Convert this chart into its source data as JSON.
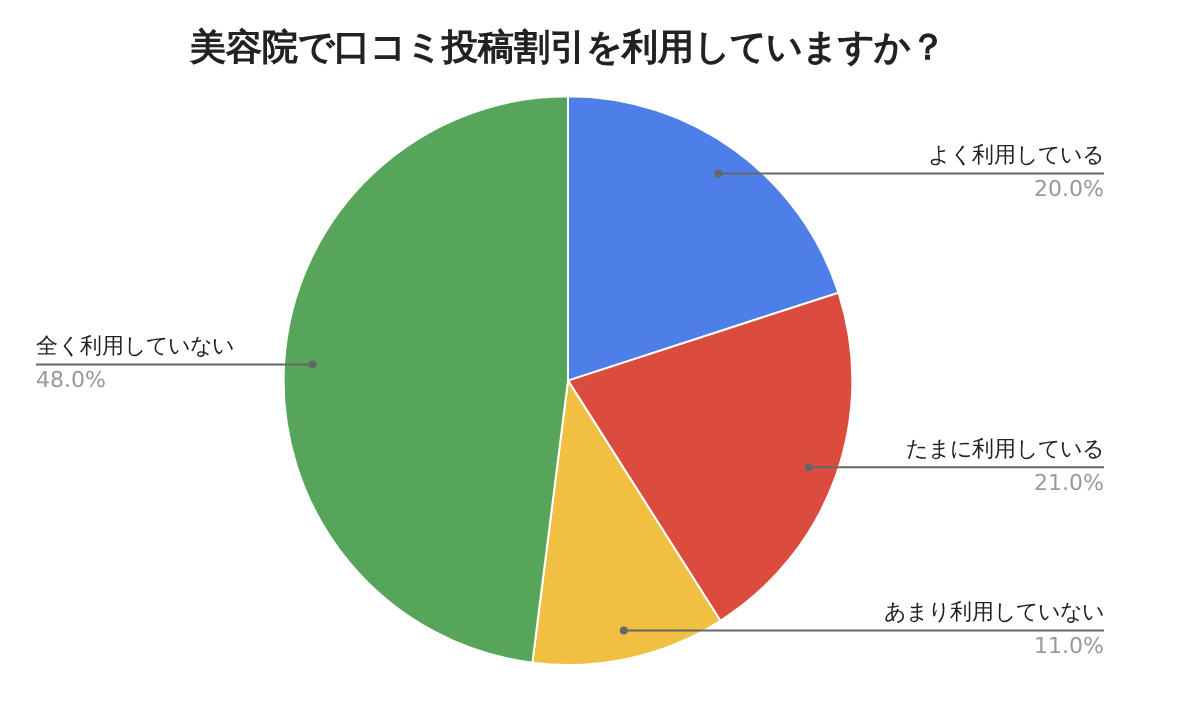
{
  "chart_data": {
    "type": "pie",
    "title": "美容院で口コミ投稿割引を利用していますか？",
    "categories": [
      "よく利用している",
      "たまに利用している",
      "あまり利用していない",
      "全く利用していない"
    ],
    "values": [
      20.0,
      21.0,
      11.0,
      48.0
    ],
    "colors": [
      "#4e7fe8",
      "#db4c3f",
      "#f1bf42",
      "#57a55a"
    ],
    "value_labels": [
      "20.0%",
      "21.0%",
      "11.0%",
      "48.0%"
    ],
    "legend": false
  }
}
